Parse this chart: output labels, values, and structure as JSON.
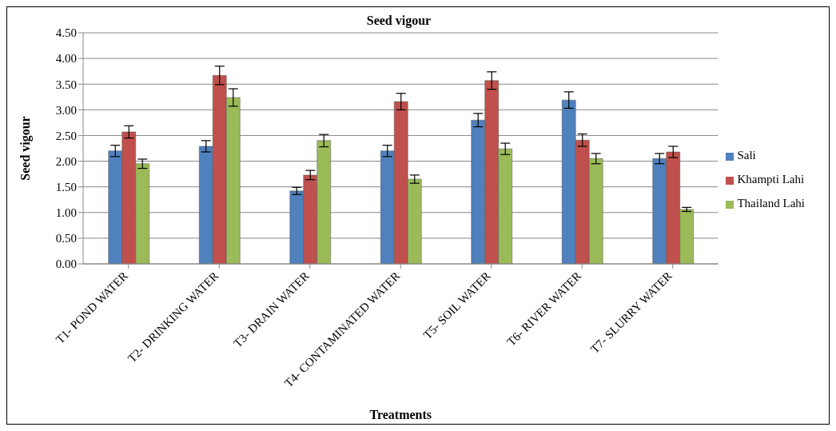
{
  "chart_data": {
    "type": "bar",
    "title": "Seed vigour",
    "xlabel": "Treatments",
    "ylabel": "Seed vigour",
    "categories": [
      "T1- POND WATER",
      "T2- DRINKING WATER",
      "T3- DRAIN WATER",
      "T4- CONTAMINATED WATER",
      "T5- SOIL WATER",
      "T6- RIVER WATER",
      "T7- SLURRY WATER"
    ],
    "series": [
      {
        "name": "Sali",
        "color": "#4f81bd",
        "values": [
          2.2,
          2.29,
          1.42,
          2.2,
          2.8,
          3.19,
          2.05
        ],
        "errors": [
          0.11,
          0.11,
          0.07,
          0.11,
          0.13,
          0.16,
          0.1
        ]
      },
      {
        "name": "Khampti Lahi",
        "color": "#c0504d",
        "values": [
          2.57,
          3.67,
          1.73,
          3.16,
          3.57,
          2.41,
          2.18
        ],
        "errors": [
          0.12,
          0.18,
          0.09,
          0.16,
          0.17,
          0.12,
          0.11
        ]
      },
      {
        "name": "Thailand Lahi",
        "color": "#9bbb59",
        "values": [
          1.95,
          3.24,
          2.4,
          1.65,
          2.24,
          2.05,
          1.06
        ],
        "errors": [
          0.09,
          0.17,
          0.12,
          0.08,
          0.11,
          0.1,
          0.04
        ]
      }
    ],
    "ylim": [
      0,
      4.5
    ],
    "yticks": [
      {
        "value": 0,
        "label": "0.00"
      },
      {
        "value": 0.5,
        "label": "0.50"
      },
      {
        "value": 1,
        "label": "1.00"
      },
      {
        "value": 1.5,
        "label": "1.50"
      },
      {
        "value": 2,
        "label": "2.00"
      },
      {
        "value": 2.5,
        "label": "2.50"
      },
      {
        "value": 3,
        "label": "3.00"
      },
      {
        "value": 3.5,
        "label": "3.50"
      },
      {
        "value": 4,
        "label": "4.00"
      },
      {
        "value": 4.5,
        "label": "4.50"
      }
    ],
    "grid": "y",
    "legend": "right"
  }
}
